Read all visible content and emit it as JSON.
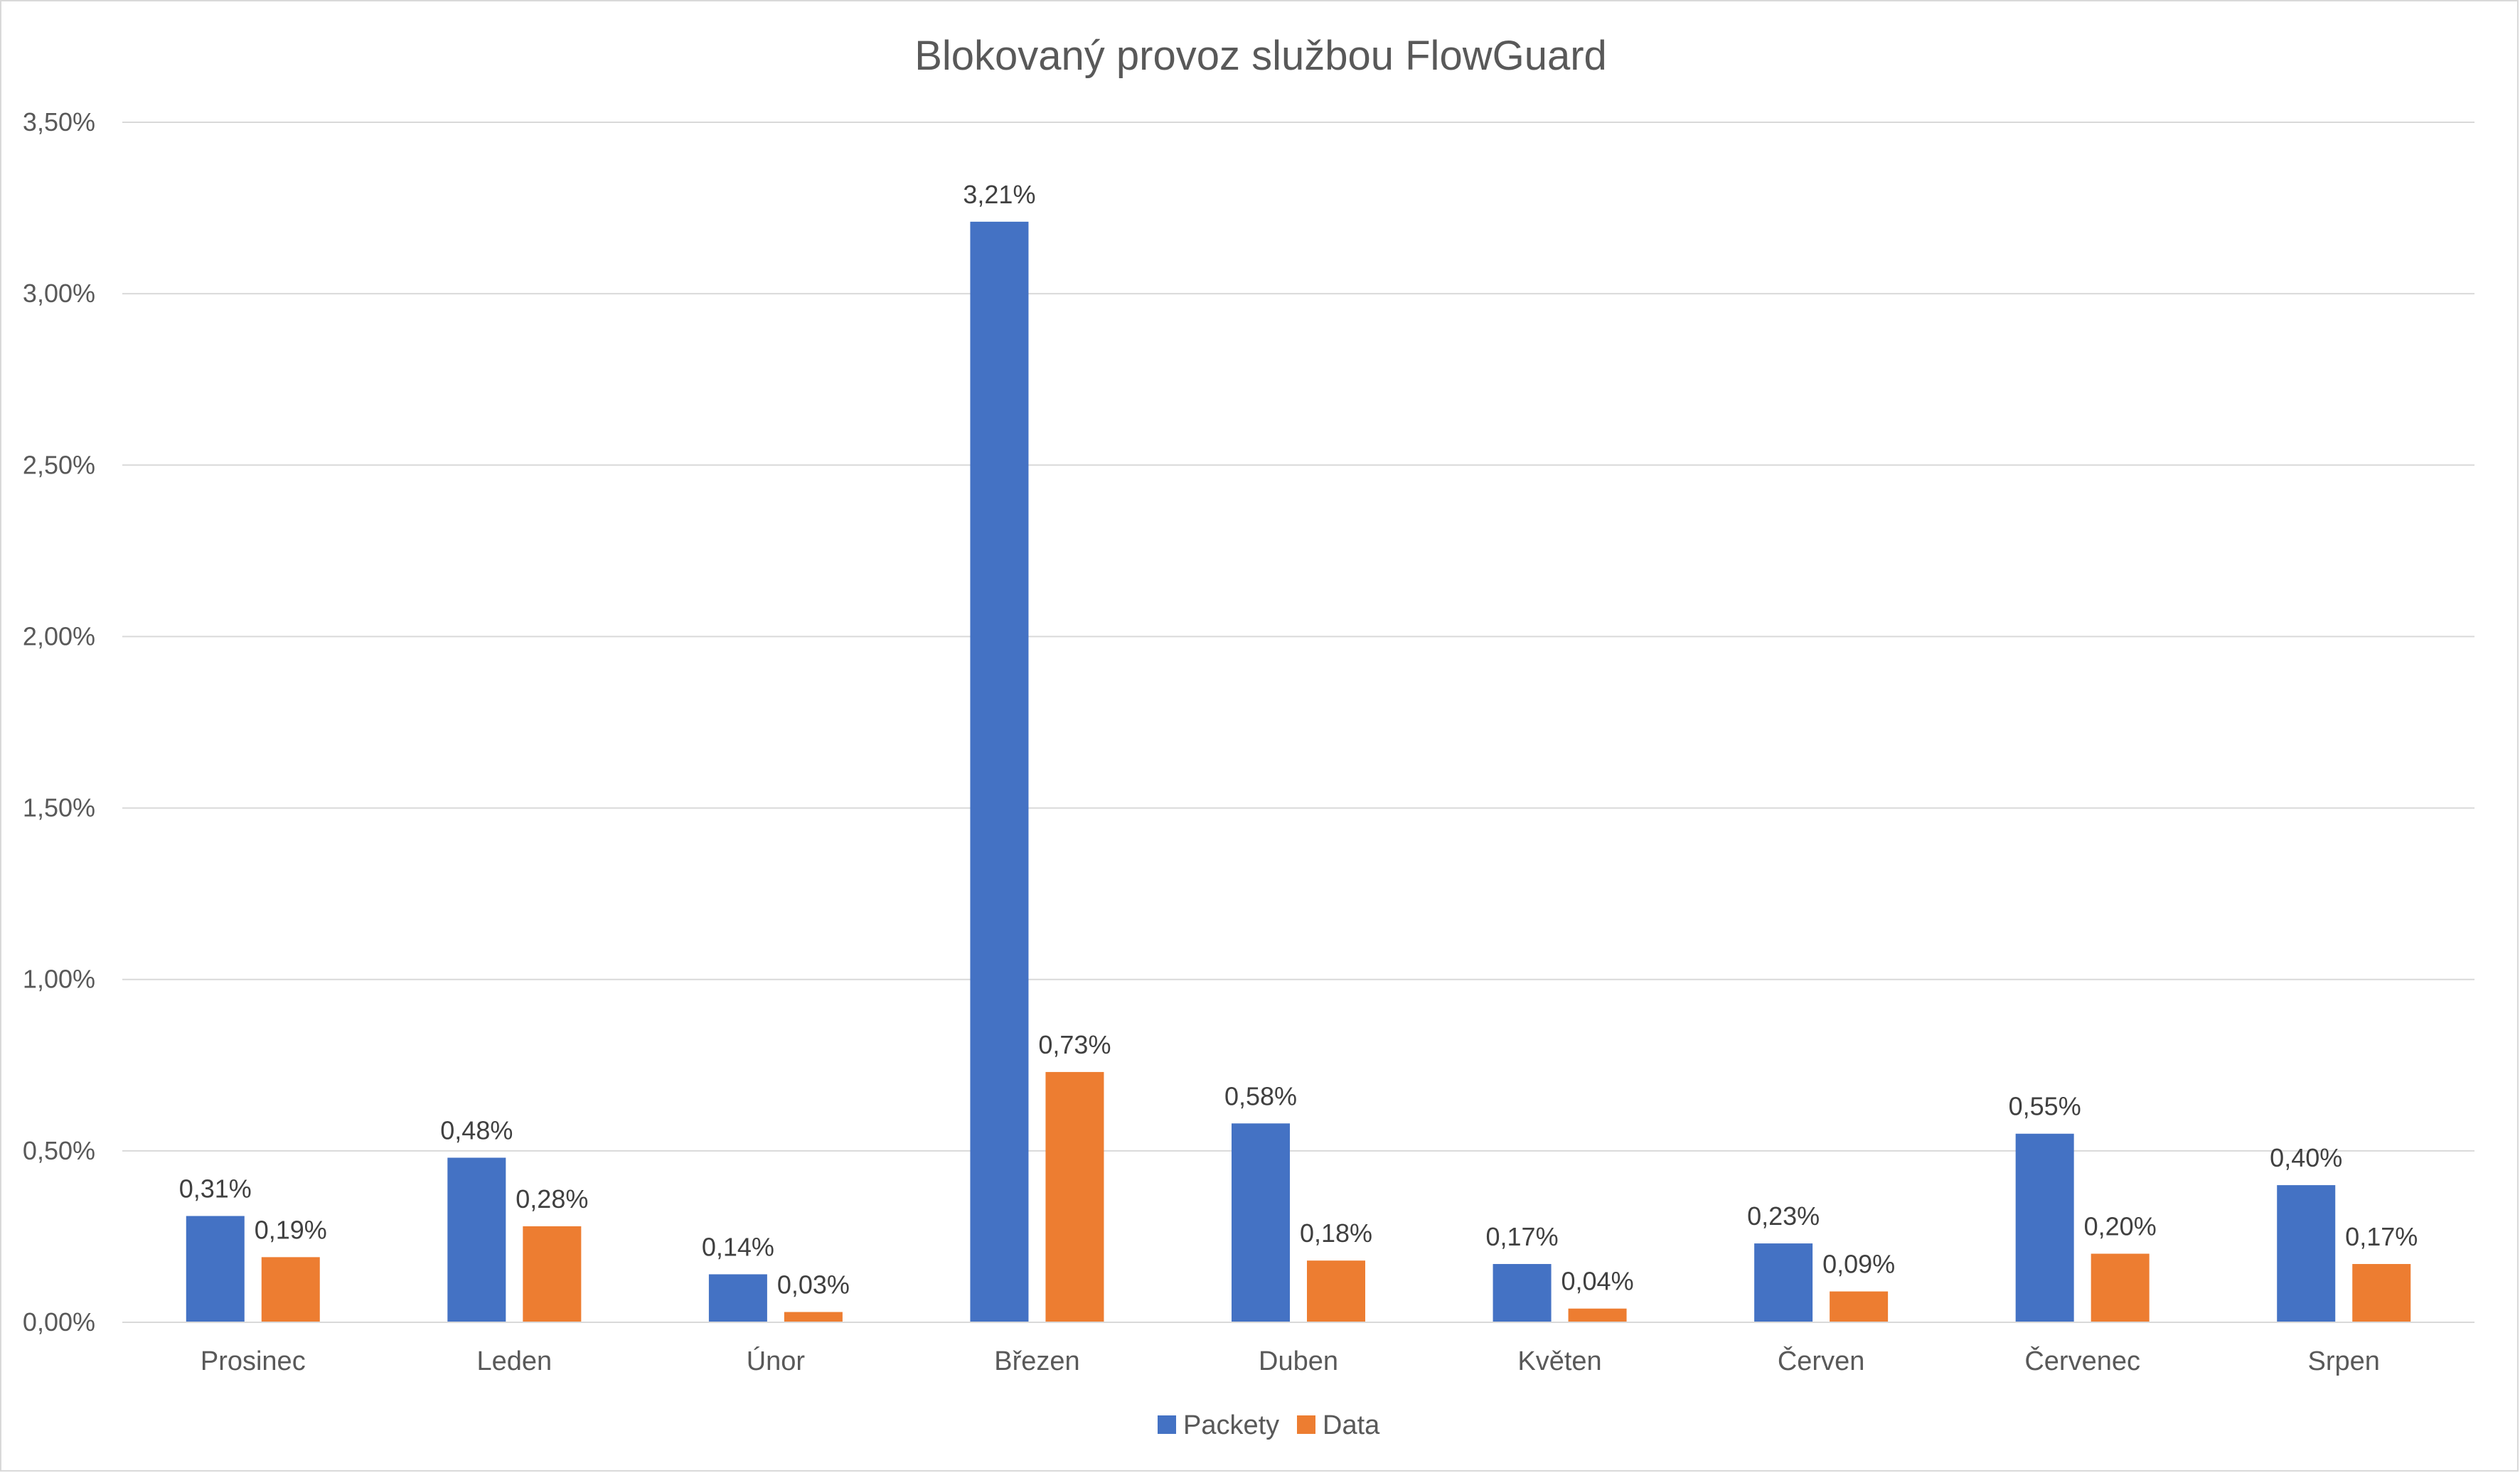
{
  "chart_data": {
    "type": "bar",
    "title": "Blokovaný provoz službou FlowGuard",
    "categories": [
      "Prosinec",
      "Leden",
      "Únor",
      "Březen",
      "Duben",
      "Květen",
      "Červen",
      "Červenec",
      "Srpen"
    ],
    "series": [
      {
        "name": "Packety",
        "color": "#4472C4",
        "values": [
          0.31,
          0.48,
          0.14,
          3.21,
          0.58,
          0.17,
          0.23,
          0.55,
          0.4
        ],
        "labels": [
          "0,31%",
          "0,48%",
          "0,14%",
          "3,21%",
          "0,58%",
          "0,17%",
          "0,23%",
          "0,55%",
          "0,40%"
        ]
      },
      {
        "name": "Data",
        "color": "#ED7D31",
        "values": [
          0.19,
          0.28,
          0.03,
          0.73,
          0.18,
          0.04,
          0.09,
          0.2,
          0.17
        ],
        "labels": [
          "0,19%",
          "0,28%",
          "0,03%",
          "0,73%",
          "0,18%",
          "0,04%",
          "0,09%",
          "0,20%",
          "0,17%"
        ]
      }
    ],
    "ylim": [
      0,
      3.5
    ],
    "yticks": [
      {
        "value": 0,
        "label": "0,00%"
      },
      {
        "value": 0.5,
        "label": "0,50%"
      },
      {
        "value": 1.0,
        "label": "1,00%"
      },
      {
        "value": 1.5,
        "label": "1,50%"
      },
      {
        "value": 2.0,
        "label": "2,00%"
      },
      {
        "value": 2.5,
        "label": "2,50%"
      },
      {
        "value": 3.0,
        "label": "3,00%"
      },
      {
        "value": 3.5,
        "label": "3,50%"
      }
    ],
    "ylabel": "",
    "xlabel": "",
    "grid": true,
    "legend_position": "bottom",
    "gridline_color": "#D9D9D9"
  }
}
